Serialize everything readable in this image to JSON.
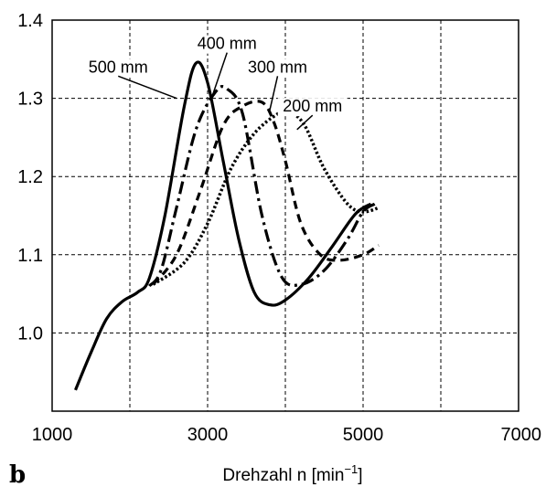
{
  "chart_data": {
    "type": "line",
    "panel_label": "b",
    "title": "",
    "xlabel": "Drehzahl n [min",
    "xlabel_exponent": "−1",
    "xlabel_suffix": "]",
    "ylabel": "",
    "xlim": [
      1000,
      7000
    ],
    "ylim": [
      0.9,
      1.4
    ],
    "x_ticks": [
      1000,
      3000,
      5000,
      7000
    ],
    "x_tick_labels": [
      "1000",
      "3000",
      "5000",
      "7000"
    ],
    "y_ticks": [
      1.0,
      1.1,
      1.2,
      1.3,
      1.4
    ],
    "y_tick_labels": [
      "1.0",
      "1.1",
      "1.2",
      "1.3",
      "1.4"
    ],
    "x_gridlines": [
      2000,
      3000,
      4000,
      5000,
      6000
    ],
    "grid": true,
    "series": [
      {
        "name": "500 mm",
        "style": "solid",
        "points": [
          [
            1300,
            0.927
          ],
          [
            1500,
            0.975
          ],
          [
            1700,
            1.018
          ],
          [
            1900,
            1.04
          ],
          [
            2100,
            1.052
          ],
          [
            2250,
            1.07
          ],
          [
            2450,
            1.15
          ],
          [
            2700,
            1.29
          ],
          [
            2850,
            1.345
          ],
          [
            3000,
            1.32
          ],
          [
            3200,
            1.22
          ],
          [
            3400,
            1.12
          ],
          [
            3600,
            1.052
          ],
          [
            3800,
            1.036
          ],
          [
            4000,
            1.042
          ],
          [
            4300,
            1.07
          ],
          [
            4600,
            1.11
          ],
          [
            4900,
            1.152
          ],
          [
            5100,
            1.165
          ]
        ]
      },
      {
        "name": "400 mm",
        "style": "dash-dot",
        "points": [
          [
            2250,
            1.06
          ],
          [
            2400,
            1.08
          ],
          [
            2600,
            1.16
          ],
          [
            2850,
            1.26
          ],
          [
            3100,
            1.308
          ],
          [
            3250,
            1.312
          ],
          [
            3450,
            1.28
          ],
          [
            3700,
            1.15
          ],
          [
            3950,
            1.072
          ],
          [
            4200,
            1.062
          ],
          [
            4500,
            1.08
          ],
          [
            4800,
            1.12
          ],
          [
            5000,
            1.155
          ],
          [
            5150,
            1.165
          ]
        ]
      },
      {
        "name": "300 mm",
        "style": "dashed",
        "points": [
          [
            2300,
            1.062
          ],
          [
            2600,
            1.1
          ],
          [
            2900,
            1.18
          ],
          [
            3200,
            1.265
          ],
          [
            3450,
            1.29
          ],
          [
            3700,
            1.295
          ],
          [
            3850,
            1.27
          ],
          [
            4000,
            1.22
          ],
          [
            4200,
            1.14
          ],
          [
            4450,
            1.1
          ],
          [
            4700,
            1.093
          ],
          [
            5000,
            1.1
          ],
          [
            5200,
            1.112
          ]
        ]
      },
      {
        "name": "200 mm",
        "style": "dotted",
        "points": [
          [
            2300,
            1.062
          ],
          [
            2700,
            1.09
          ],
          [
            3000,
            1.14
          ],
          [
            3300,
            1.21
          ],
          [
            3600,
            1.255
          ],
          [
            3900,
            1.28
          ],
          [
            4050,
            1.283
          ],
          [
            4250,
            1.265
          ],
          [
            4500,
            1.21
          ],
          [
            4800,
            1.165
          ],
          [
            5000,
            1.155
          ],
          [
            5200,
            1.16
          ]
        ]
      }
    ],
    "annotations": [
      {
        "text": "500 mm",
        "label_x": 1850,
        "label_y": 1.333,
        "arrow_to_x": 2600,
        "arrow_to_y": 1.3
      },
      {
        "text": "400 mm",
        "label_x": 3250,
        "label_y": 1.363,
        "arrow_to_x": 3050,
        "arrow_to_y": 1.3
      },
      {
        "text": "300 mm",
        "label_x": 3900,
        "label_y": 1.333,
        "arrow_to_x": 3800,
        "arrow_to_y": 1.285
      },
      {
        "text": "200 mm",
        "label_x": 4350,
        "label_y": 1.283,
        "arrow_to_x": 4150,
        "arrow_to_y": 1.26
      }
    ]
  }
}
